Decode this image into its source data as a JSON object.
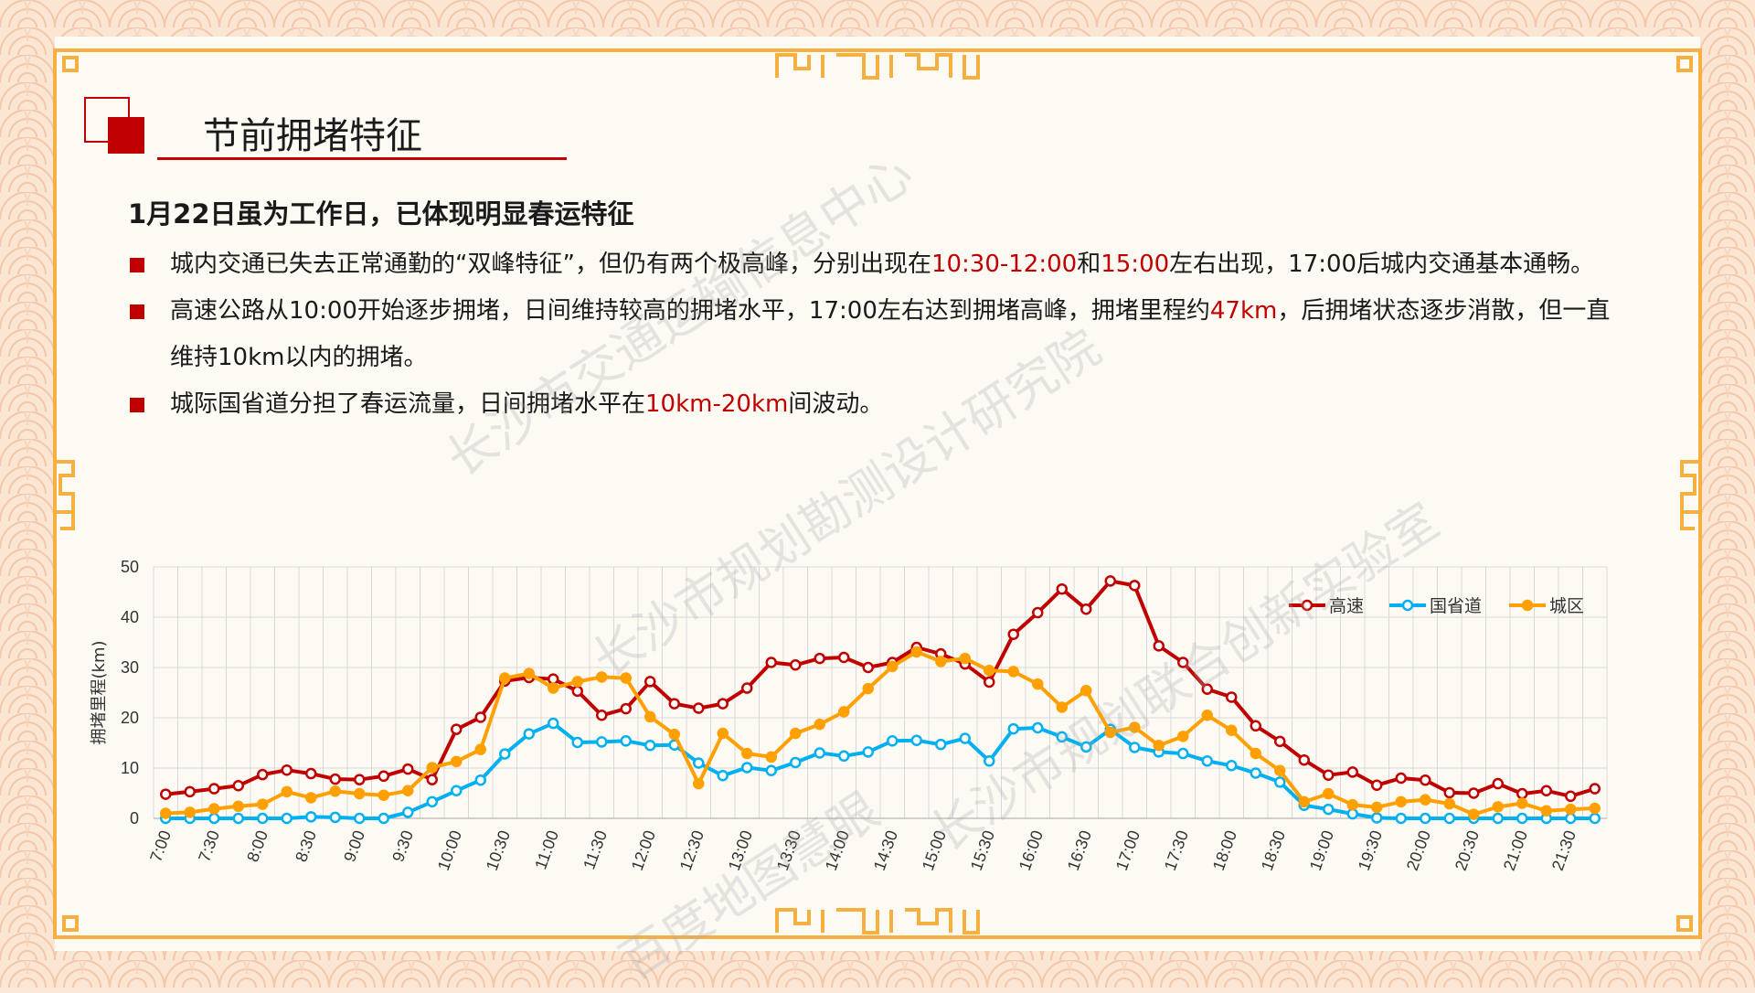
{
  "title": "节前拥堵特征",
  "subtitle": "1月22日虽为工作日，已体现明显春运特征",
  "bullets": [
    {
      "parts": [
        {
          "text": "城内交通已失去正常通勤的“双峰特征”，但仍有两个极高峰，分别出现在",
          "hl": false
        },
        {
          "text": "10:30-12:00",
          "hl": true
        },
        {
          "text": "和",
          "hl": false
        },
        {
          "text": "15:00",
          "hl": true
        },
        {
          "text": "左右出现，17:00后城内交通基本通畅。",
          "hl": false
        }
      ]
    },
    {
      "parts": [
        {
          "text": "高速公路从10:00开始逐步拥堵，日间维持较高的拥堵水平，17:00左右达到拥堵高峰，拥堵里程约",
          "hl": false
        },
        {
          "text": "47km",
          "hl": true
        },
        {
          "text": "，后拥堵状态逐步消散，但一直维持10km以内的拥堵。",
          "hl": false
        }
      ]
    },
    {
      "parts": [
        {
          "text": "城际国省道分担了春运流量，日间拥堵水平在",
          "hl": false
        },
        {
          "text": "10km-20km",
          "hl": true
        },
        {
          "text": "间波动。",
          "hl": false
        }
      ]
    }
  ],
  "watermarks": [
    "长沙市交通运输信息中心",
    "长沙市规划勘测设计研究院",
    "长沙市规划联合创新实验室",
    "百度地图慧眼"
  ],
  "colors": {
    "highway": "#c00000",
    "national": "#00b0f0",
    "urban": "#ffa000",
    "accent": "#c00000",
    "frame": "#f5b041"
  },
  "chart_data": {
    "type": "line",
    "ylabel": "拥堵里程(km)",
    "ylim": [
      0,
      50
    ],
    "yticks": [
      0,
      10,
      20,
      30,
      40,
      50
    ],
    "x_start": "7:00",
    "x_step_minutes": 15,
    "x_tick_labels": [
      "7:00",
      "7:30",
      "8:00",
      "8:30",
      "9:00",
      "9:30",
      "10:00",
      "10:30",
      "11:00",
      "11:30",
      "12:00",
      "12:30",
      "13:00",
      "13:30",
      "14:00",
      "14:30",
      "15:00",
      "15:30",
      "16:00",
      "16:30",
      "17:00",
      "17:30",
      "18:00",
      "18:30",
      "19:00",
      "19:30",
      "20:00",
      "20:30",
      "21:00",
      "21:30"
    ],
    "legend_position": "top-right",
    "grid": true,
    "series": [
      {
        "name": "高速",
        "color": "#c00000",
        "values": [
          4.8,
          5.3,
          5.9,
          6.5,
          8.7,
          9.6,
          8.9,
          7.8,
          7.7,
          8.4,
          9.8,
          7.7,
          17.7,
          20.1,
          27.3,
          28.0,
          27.7,
          25.3,
          20.5,
          21.8,
          27.2,
          22.8,
          21.9,
          22.8,
          25.9,
          31.0,
          30.5,
          31.8,
          32.0,
          30.0,
          31.0,
          34.0,
          32.7,
          30.7,
          27.1,
          36.6,
          40.9,
          45.6,
          41.6,
          47.2,
          46.3,
          34.3,
          31.0,
          25.7,
          24.1,
          18.4,
          15.3,
          11.6,
          8.6,
          9.2,
          6.6,
          8.0,
          7.6,
          5.1,
          5.0,
          6.9,
          4.9,
          5.5,
          4.4,
          5.9
        ]
      },
      {
        "name": "国省道",
        "color": "#00b0f0",
        "values": [
          0,
          0,
          0,
          0,
          0,
          0,
          0.3,
          0.2,
          0,
          0,
          1.2,
          3.3,
          5.5,
          7.6,
          12.8,
          16.8,
          18.9,
          15.1,
          15.2,
          15.4,
          14.5,
          14.6,
          11.0,
          8.5,
          10.1,
          9.5,
          11.1,
          13.0,
          12.4,
          13.2,
          15.4,
          15.5,
          14.7,
          15.9,
          11.4,
          17.8,
          18.0,
          16.2,
          14.2,
          17.7,
          14.1,
          13.2,
          12.9,
          11.4,
          10.5,
          9.0,
          7.2,
          2.6,
          1.8,
          0.9,
          0.1,
          0,
          0,
          0,
          0,
          0,
          0,
          0,
          0,
          0
        ]
      },
      {
        "name": "城区",
        "color": "#ffa000",
        "values": [
          1.0,
          1.2,
          1.9,
          2.4,
          2.8,
          5.3,
          4.1,
          5.4,
          4.9,
          4.6,
          5.5,
          10.1,
          11.3,
          13.7,
          27.9,
          28.8,
          25.9,
          27.2,
          28.1,
          27.9,
          20.2,
          16.7,
          6.9,
          16.9,
          12.9,
          12.2,
          16.9,
          18.7,
          21.2,
          25.8,
          30.2,
          33.1,
          31.2,
          31.8,
          29.4,
          29.2,
          26.7,
          22.1,
          25.4,
          17.1,
          18.1,
          14.5,
          16.3,
          20.5,
          17.5,
          12.9,
          9.5,
          3.3,
          4.9,
          2.7,
          2.2,
          3.3,
          3.7,
          2.9,
          0.8,
          2.3,
          3.0,
          1.5,
          1.8,
          2.0
        ]
      }
    ]
  }
}
